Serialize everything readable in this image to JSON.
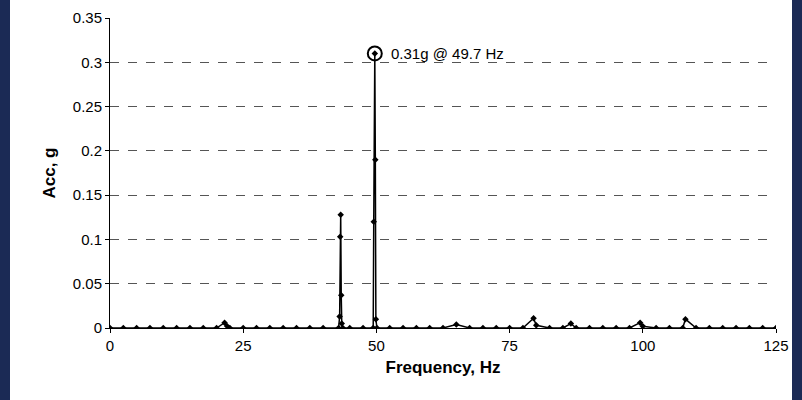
{
  "chart_data": {
    "type": "line",
    "x_label": "Frequency, Hz",
    "y_label": "Acc, g",
    "x": [
      0,
      2.5,
      5,
      7.5,
      10,
      12.5,
      15,
      17.5,
      20,
      21.5,
      22,
      22.5,
      25,
      27.5,
      30,
      32.5,
      35,
      37.5,
      40,
      42.9,
      43.1,
      43.2,
      43.3,
      43.4,
      43.5,
      43.7,
      45,
      47.5,
      49.4,
      49.5,
      49.7,
      49.8,
      49.9,
      50.1,
      52.5,
      55,
      57.5,
      60,
      62.5,
      65,
      67.5,
      70,
      72.5,
      75,
      77.5,
      79.5,
      80,
      82.5,
      85,
      86.5,
      87.5,
      90,
      92.5,
      95,
      97.5,
      99.5,
      100,
      102.5,
      105,
      107.5,
      108,
      110,
      112.5,
      115,
      117.5,
      120,
      122.5,
      125
    ],
    "values": [
      0,
      0,
      0,
      0,
      0,
      0,
      0,
      0,
      0,
      0.006,
      0.002,
      0,
      0,
      0,
      0,
      0,
      0,
      0,
      0,
      0,
      0.013,
      0.103,
      0.128,
      0.037,
      0.005,
      0,
      0,
      0,
      0,
      0.12,
      0.31,
      0.19,
      0.01,
      0,
      0,
      0,
      0,
      0,
      0,
      0.004,
      0,
      0,
      0,
      0,
      0,
      0.011,
      0.003,
      0,
      0,
      0.005,
      0,
      0,
      0,
      0,
      0,
      0.006,
      0.002,
      0,
      0,
      0,
      0.01,
      0,
      0,
      0,
      0,
      0,
      0,
      0
    ],
    "color": "#000000",
    "marker": "diamond",
    "xlim": [
      0,
      125
    ],
    "xticks": [
      0,
      25,
      50,
      75,
      100,
      125
    ],
    "ylim": [
      0,
      0.35
    ],
    "yticks": [
      0,
      0.05,
      0.1,
      0.15,
      0.2,
      0.25,
      0.3,
      0.35
    ],
    "grid": true,
    "annotations": [
      {
        "x": 49.7,
        "y": 0.31,
        "text": "0.31g @ 49.7 Hz"
      }
    ]
  }
}
